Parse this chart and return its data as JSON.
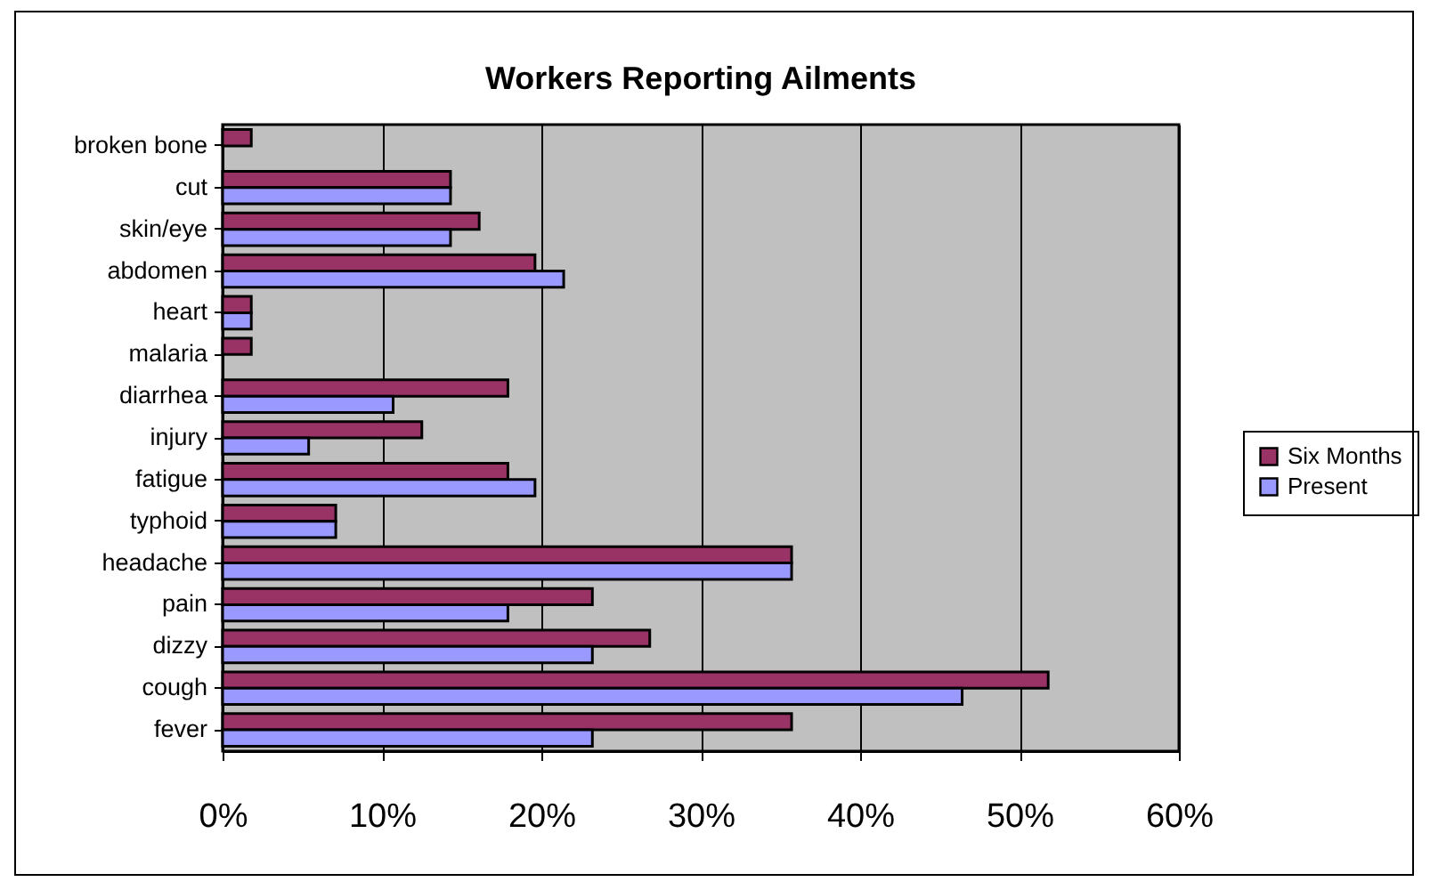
{
  "chart_data": {
    "type": "bar",
    "orientation": "horizontal",
    "title": "Workers Reporting Ailments",
    "categories": [
      "broken bone",
      "cut",
      "skin/eye",
      "abdomen",
      "heart",
      "malaria",
      "diarrhea",
      "injury",
      "fatigue",
      "typhoid",
      "headache",
      "pain",
      "dizzy",
      "cough",
      "fever"
    ],
    "series": [
      {
        "name": "Six Months",
        "color": "#993366",
        "values": [
          1.8,
          14.3,
          16.1,
          19.6,
          1.8,
          1.8,
          17.9,
          12.5,
          17.9,
          7.1,
          35.7,
          23.2,
          26.8,
          51.8,
          35.7
        ]
      },
      {
        "name": "Present",
        "color": "#9999ff",
        "values": [
          null,
          14.3,
          14.3,
          21.4,
          1.8,
          null,
          10.7,
          5.4,
          19.6,
          7.1,
          35.7,
          17.9,
          23.2,
          46.4,
          23.2
        ]
      }
    ],
    "xlim": [
      0,
      60
    ],
    "xticks": [
      {
        "value": 0,
        "label": "0%"
      },
      {
        "value": 10,
        "label": "10%"
      },
      {
        "value": 20,
        "label": "20%"
      },
      {
        "value": 30,
        "label": "30%"
      },
      {
        "value": 40,
        "label": "40%"
      },
      {
        "value": 50,
        "label": "50%"
      },
      {
        "value": 60,
        "label": "60%"
      }
    ],
    "grid": "x",
    "legend": "right"
  }
}
